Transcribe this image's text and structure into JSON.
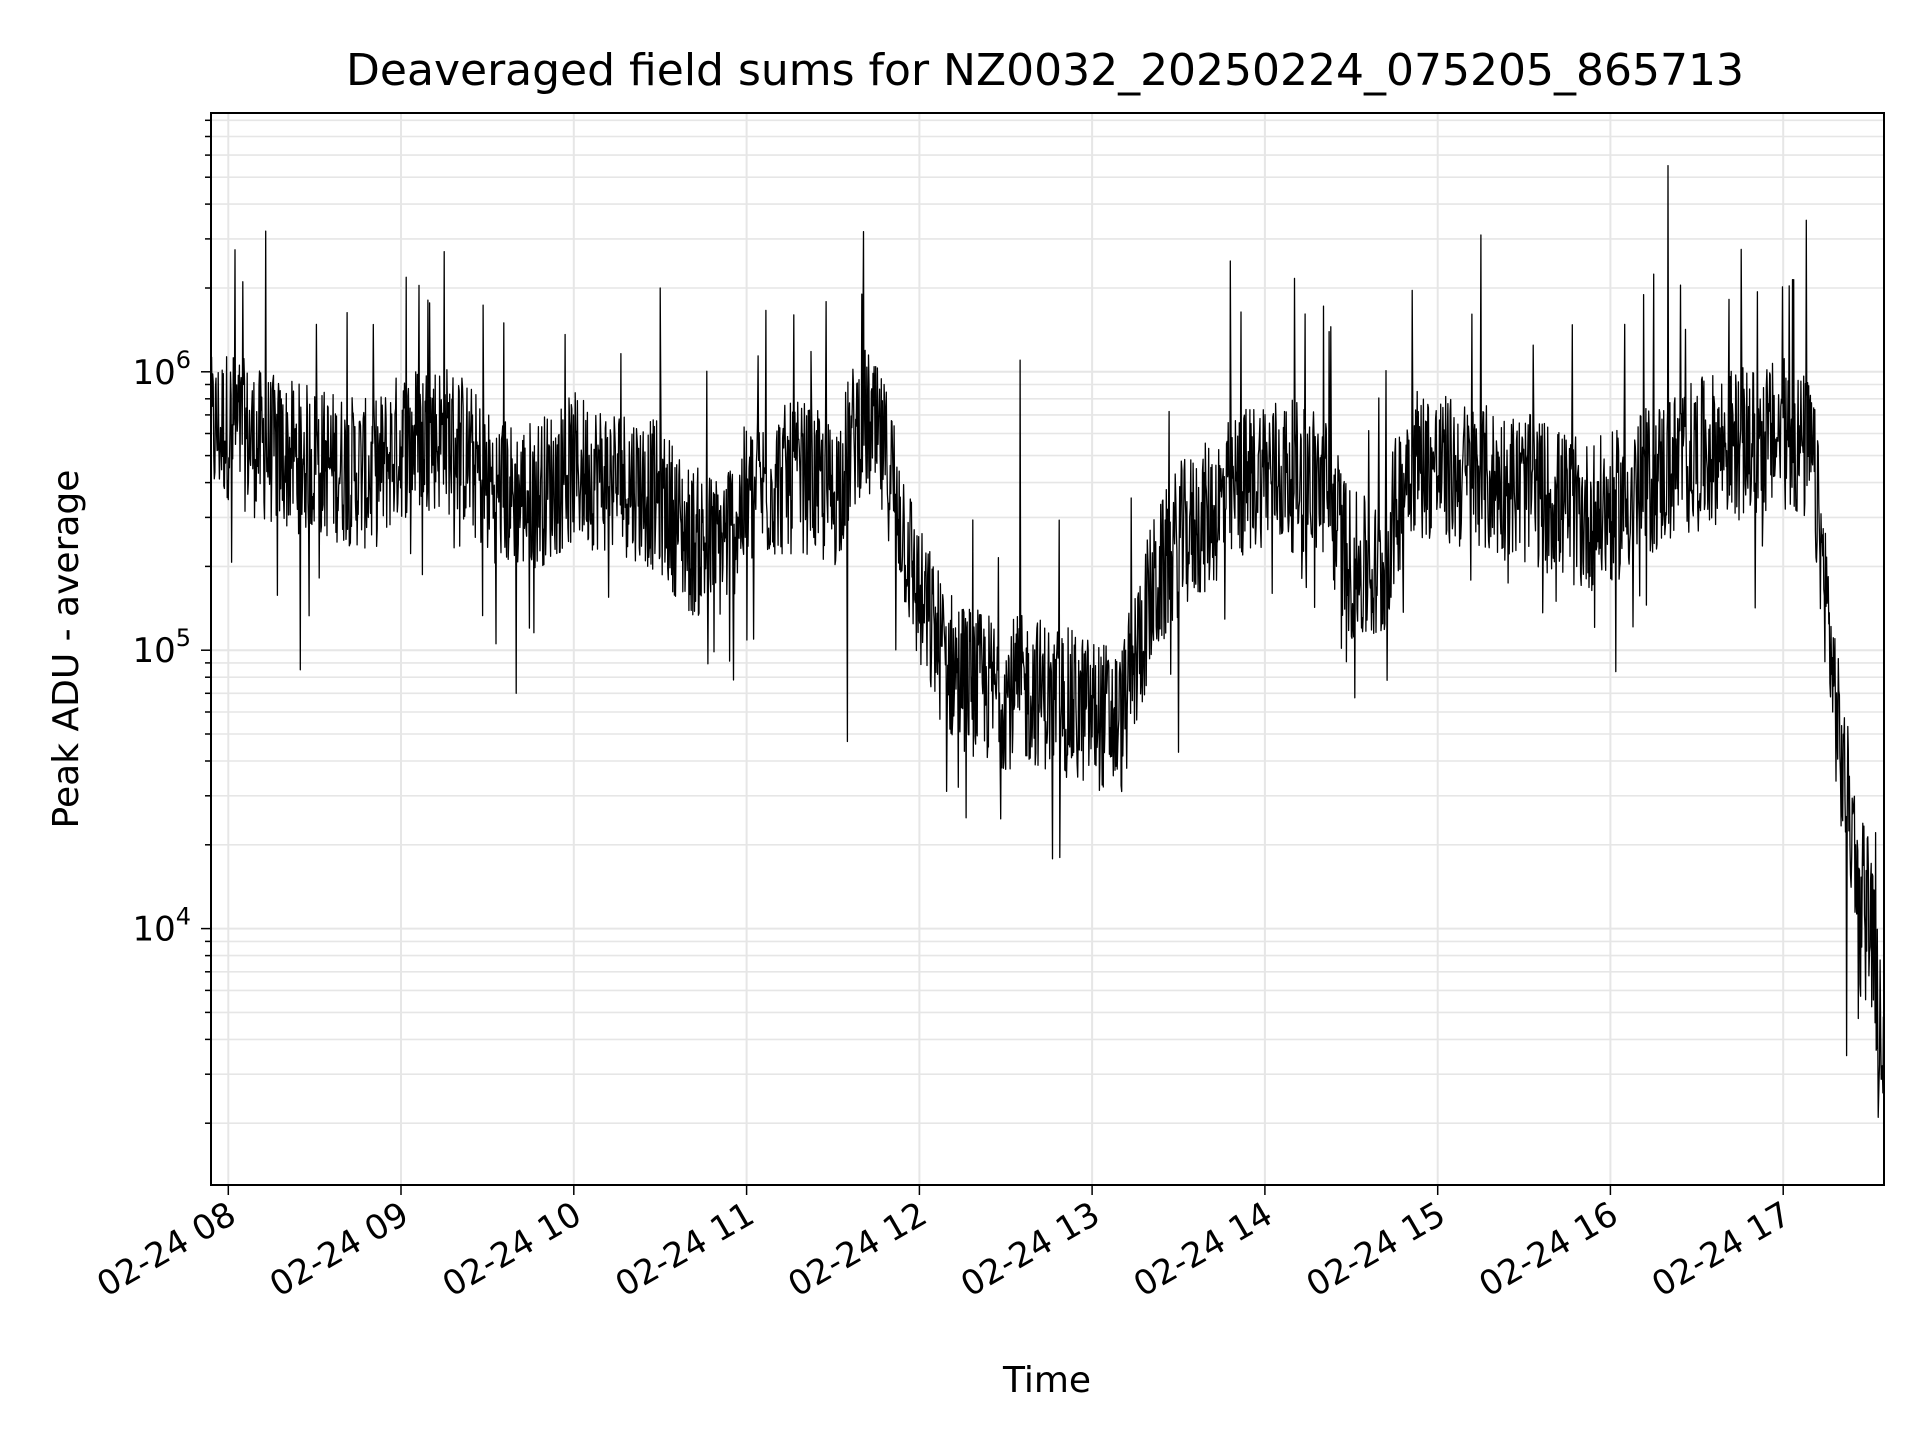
{
  "chart_data": {
    "type": "line",
    "title": "Deaveraged field sums for NZ0032_20250224_075205_865713",
    "xlabel": "Time",
    "ylabel": "Peak ADU - average",
    "yscale": "log",
    "xlim": [
      "2025-02-24 07:54",
      "2025-02-24 17:35"
    ],
    "ylim": [
      1200,
      8500000
    ],
    "grid": true,
    "line_color": "#000000",
    "grid_color": "#e6e6e6",
    "x_ticks": [
      {
        "t": "2025-02-24 08:00",
        "label": "02-24 08"
      },
      {
        "t": "2025-02-24 09:00",
        "label": "02-24 09"
      },
      {
        "t": "2025-02-24 10:00",
        "label": "02-24 10"
      },
      {
        "t": "2025-02-24 11:00",
        "label": "02-24 11"
      },
      {
        "t": "2025-02-24 12:00",
        "label": "02-24 12"
      },
      {
        "t": "2025-02-24 13:00",
        "label": "02-24 13"
      },
      {
        "t": "2025-02-24 14:00",
        "label": "02-24 14"
      },
      {
        "t": "2025-02-24 15:00",
        "label": "02-24 15"
      },
      {
        "t": "2025-02-24 16:00",
        "label": "02-24 16"
      },
      {
        "t": "2025-02-24 17:00",
        "label": "02-24 17"
      }
    ],
    "y_ticks": [
      {
        "v": 10000,
        "base": "10",
        "exp": "4"
      },
      {
        "v": 100000,
        "base": "10",
        "exp": "5"
      },
      {
        "v": 1000000,
        "base": "10",
        "exp": "6"
      }
    ],
    "series": [
      {
        "x": [
          "2025-02-24 07:54",
          "2025-02-24 08:00",
          "2025-02-24 08:10",
          "2025-02-24 08:20",
          "2025-02-24 08:30",
          "2025-02-24 08:40",
          "2025-02-24 08:50",
          "2025-02-24 09:00",
          "2025-02-24 09:10",
          "2025-02-24 09:20",
          "2025-02-24 09:30",
          "2025-02-24 09:40",
          "2025-02-24 09:50",
          "2025-02-24 10:00",
          "2025-02-24 10:10",
          "2025-02-24 10:20",
          "2025-02-24 10:30",
          "2025-02-24 10:40",
          "2025-02-24 10:50",
          "2025-02-24 11:00",
          "2025-02-24 11:10",
          "2025-02-24 11:20",
          "2025-02-24 11:30",
          "2025-02-24 11:40",
          "2025-02-24 11:50",
          "2025-02-24 12:00",
          "2025-02-24 12:10",
          "2025-02-24 12:20",
          "2025-02-24 12:30",
          "2025-02-24 12:40",
          "2025-02-24 12:50",
          "2025-02-24 13:00",
          "2025-02-24 13:10",
          "2025-02-24 13:20",
          "2025-02-24 13:30",
          "2025-02-24 13:40",
          "2025-02-24 13:50",
          "2025-02-24 14:00",
          "2025-02-24 14:10",
          "2025-02-24 14:20",
          "2025-02-24 14:30",
          "2025-02-24 14:40",
          "2025-02-24 14:50",
          "2025-02-24 15:00",
          "2025-02-24 15:10",
          "2025-02-24 15:20",
          "2025-02-24 15:30",
          "2025-02-24 15:40",
          "2025-02-24 15:50",
          "2025-02-24 16:00",
          "2025-02-24 16:10",
          "2025-02-24 16:20",
          "2025-02-24 16:30",
          "2025-02-24 16:40",
          "2025-02-24 16:50",
          "2025-02-24 17:00",
          "2025-02-24 17:10",
          "2025-02-24 17:15",
          "2025-02-24 17:20",
          "2025-02-24 17:25",
          "2025-02-24 17:30",
          "2025-02-24 17:35"
        ],
        "values": [
          600000,
          650000,
          550000,
          500000,
          480000,
          450000,
          420000,
          550000,
          600000,
          550000,
          400000,
          350000,
          380000,
          450000,
          420000,
          400000,
          350000,
          250000,
          230000,
          350000,
          400000,
          420000,
          350000,
          700000,
          450000,
          150000,
          90000,
          75000,
          70000,
          72000,
          65000,
          60000,
          55000,
          150000,
          250000,
          300000,
          380000,
          450000,
          420000,
          400000,
          200000,
          180000,
          500000,
          450000,
          420000,
          400000,
          380000,
          350000,
          300000,
          320000,
          380000,
          450000,
          500000,
          550000,
          550000,
          600000,
          500000,
          150000,
          40000,
          20000,
          12000,
          3000
        ],
        "peaks": [
          {
            "t": "2025-02-24 08:13",
            "v": 3200000
          },
          {
            "t": "2025-02-24 09:15",
            "v": 2700000
          },
          {
            "t": "2025-02-24 10:30",
            "v": 2000000
          },
          {
            "t": "2025-02-24 11:40",
            "v": 1900000
          },
          {
            "t": "2025-02-24 12:35",
            "v": 1100000
          },
          {
            "t": "2025-02-24 13:48",
            "v": 2500000
          },
          {
            "t": "2025-02-24 15:15",
            "v": 3100000
          },
          {
            "t": "2025-02-24 16:20",
            "v": 5500000
          },
          {
            "t": "2025-02-24 17:08",
            "v": 3500000
          }
        ],
        "troughs": [
          {
            "t": "2025-02-24 08:25",
            "v": 85000
          },
          {
            "t": "2025-02-24 09:40",
            "v": 70000
          },
          {
            "t": "2025-02-24 11:35",
            "v": 47000
          },
          {
            "t": "2025-02-24 12:55",
            "v": 35000
          },
          {
            "t": "2025-02-24 13:30",
            "v": 43000
          },
          {
            "t": "2025-02-24 17:22",
            "v": 3500
          },
          {
            "t": "2025-02-24 17:33",
            "v": 2100
          }
        ]
      }
    ]
  }
}
